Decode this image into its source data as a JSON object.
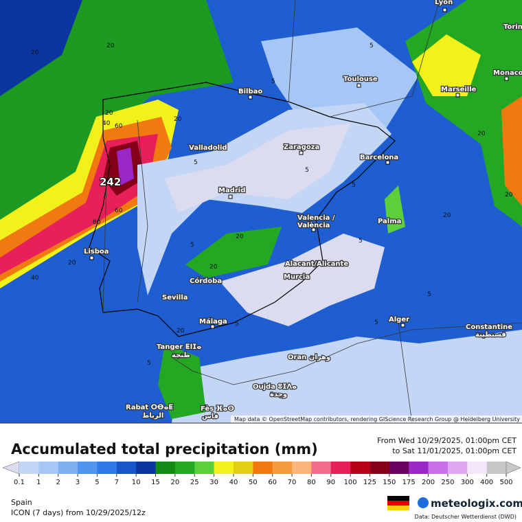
{
  "map": {
    "cities": [
      "Lyon",
      "Torin",
      "Monaco",
      "Marseille",
      "Toulouse",
      "Bilbao",
      "Valladolid",
      "Zaragoza",
      "Barcelona",
      "Madrid",
      "Valencia /",
      "València",
      "Palma",
      "Lisboa",
      "Alacant/Alicante",
      "Murcia",
      "Córdoba",
      "Sevilla",
      "Málaga",
      "Tanger ⵟⵏⵊⴰ",
      "طنجة",
      "Alger",
      "Constantine",
      "قسنطينة",
      "Oran وهران",
      "Oujda ⵓⵊⴷⴰ",
      "وجدة",
      "Rabat ⵔⴱⴰⵟ",
      "الرباط",
      "Fès ⴼⴰⵙ",
      "فاس"
    ],
    "max_label": "242",
    "contour_labels": [
      "20",
      "20",
      "20",
      "40",
      "60",
      "20",
      "5",
      "60",
      "80",
      "20",
      "40",
      "20",
      "20",
      "5",
      "5",
      "5",
      "5",
      "5",
      "20",
      "20",
      "20",
      "5",
      "5",
      "20",
      "5",
      "5",
      "5"
    ],
    "attribution": "Map data © OpenStreetMap contributors, rendering GIScience Research Group @ Heidelberg University"
  },
  "header": {
    "title": "Accumulated total precipitation (mm)",
    "from": "From Wed 10/29/2025, 01:00pm CET",
    "to": "to Sat 11/01/2025, 01:00pm CET"
  },
  "legend": {
    "ticks": [
      0.1,
      1,
      2,
      3,
      5,
      7,
      10,
      15,
      20,
      25,
      30,
      40,
      50,
      60,
      70,
      80,
      90,
      100,
      125,
      150,
      175,
      200,
      250,
      300,
      400,
      500
    ],
    "colors": [
      "#dcdcf0",
      "#c4d6f6",
      "#a6c6f6",
      "#7fb1f2",
      "#4f95ee",
      "#2f7ae6",
      "#1857c9",
      "#0b36a0",
      "#138a16",
      "#24a824",
      "#5ccf3a",
      "#f2f21a",
      "#e4cf12",
      "#f07a10",
      "#f49a3c",
      "#f8b47c",
      "#f46a8a",
      "#e8205a",
      "#b80018",
      "#840018",
      "#6a0060",
      "#9a28c8",
      "#c870e8",
      "#e0a8f2",
      "#f2e6f8",
      "#c8c8c8"
    ]
  },
  "footer": {
    "region": "Spain",
    "model": "ICON (7 days)  from  10/29/2025/12z",
    "brand": "meteologix.com",
    "source": "Data: Deutscher Wetterdienst (DWD)"
  }
}
